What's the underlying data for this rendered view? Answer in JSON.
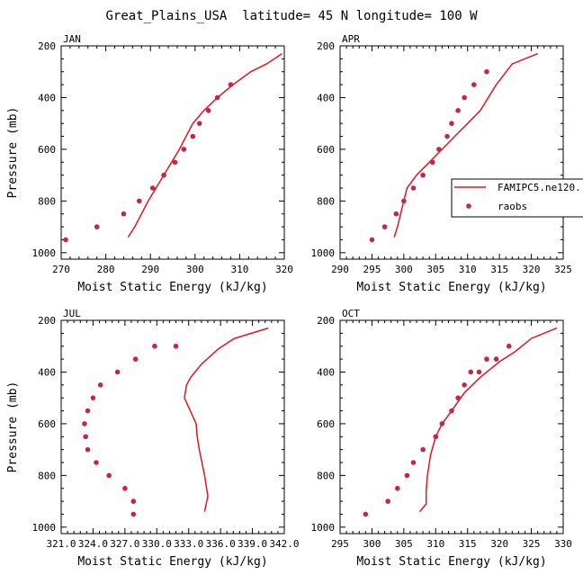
{
  "figure_title": "Great_Plains_USA  latitude= 45 N longitude= 100 W",
  "legend": {
    "model_label": "FAMIPC5.ne120.",
    "obs_label": "raobs",
    "model_color": "#e8131c",
    "obs_color": "#c2264a"
  },
  "chart_data": [
    {
      "type": "line",
      "panel": "JAN",
      "title": "JAN",
      "xlabel": "Moist Static Energy (kJ/kg)",
      "ylabel": "Pressure (mb)",
      "xlim": [
        270,
        320
      ],
      "ylim": [
        1025,
        200
      ],
      "x_ticks": [
        270,
        280,
        290,
        300,
        310,
        320
      ],
      "x_tick_labels": [
        "270",
        "280",
        "290",
        "300",
        "310",
        "320"
      ],
      "y_ticks": [
        200,
        400,
        600,
        800,
        1000
      ],
      "y_tick_labels": [
        "200",
        "400",
        "600",
        "800",
        "1000"
      ],
      "series": [
        {
          "name": "FAMIPC5.ne120.",
          "style": "line",
          "x": [
            285.0,
            286.5,
            289.5,
            293.0,
            296.5,
            299.5,
            302.0,
            305.0,
            308.5,
            312.5,
            316.0,
            319.5
          ],
          "y": [
            940,
            900,
            800,
            700,
            600,
            500,
            450,
            400,
            350,
            300,
            270,
            230
          ]
        },
        {
          "name": "raobs",
          "style": "points",
          "x": [
            271.0,
            278.0,
            284.0,
            287.5,
            290.5,
            293.0,
            295.5,
            297.5,
            299.5,
            301.0,
            303.0,
            305.0,
            308.0
          ],
          "y": [
            950,
            900,
            850,
            800,
            750,
            700,
            650,
            600,
            550,
            500,
            450,
            400,
            350
          ]
        }
      ]
    },
    {
      "type": "line",
      "panel": "APR",
      "title": "APR",
      "xlabel": "Moist Static Energy (kJ/kg)",
      "ylabel": "Pressure (mb)",
      "xlim": [
        290,
        325
      ],
      "ylim": [
        1025,
        200
      ],
      "x_ticks": [
        290,
        295,
        300,
        305,
        310,
        315,
        320,
        325
      ],
      "x_tick_labels": [
        "290",
        "295",
        "300",
        "305",
        "310",
        "315",
        "320",
        "325"
      ],
      "y_ticks": [
        200,
        400,
        600,
        800,
        1000
      ],
      "y_tick_labels": [
        "200",
        "400",
        "600",
        "800",
        "1000"
      ],
      "series": [
        {
          "name": "FAMIPC5.ne120.",
          "style": "line",
          "x": [
            298.5,
            299.0,
            299.5,
            300.5,
            302.0,
            304.0,
            306.0,
            308.0,
            310.0,
            312.0,
            314.5,
            317.0,
            321.0
          ],
          "y": [
            940,
            900,
            850,
            750,
            700,
            650,
            600,
            550,
            500,
            450,
            350,
            270,
            230
          ]
        },
        {
          "name": "raobs",
          "style": "points",
          "x": [
            295.0,
            297.0,
            298.8,
            300.0,
            301.5,
            303.0,
            304.5,
            305.5,
            306.8,
            307.5,
            308.5,
            309.5,
            311.0,
            313.0
          ],
          "y": [
            950,
            900,
            850,
            800,
            750,
            700,
            650,
            600,
            550,
            500,
            450,
            400,
            350,
            300
          ]
        }
      ]
    },
    {
      "type": "line",
      "panel": "JUL",
      "title": "JUL",
      "xlabel": "Moist Static Energy (kJ/kg)",
      "ylabel": "Pressure (mb)",
      "xlim": [
        321.0,
        342.0
      ],
      "ylim": [
        1025,
        200
      ],
      "x_ticks": [
        321.0,
        324.0,
        327.0,
        330.0,
        333.0,
        336.0,
        339.0,
        342.0
      ],
      "x_tick_labels": [
        "321.0",
        "324.0",
        "327.0",
        "330.0",
        "333.0",
        "336.0",
        "339.0",
        "342.0"
      ],
      "y_ticks": [
        200,
        400,
        600,
        800,
        1000
      ],
      "y_tick_labels": [
        "200",
        "400",
        "600",
        "800",
        "1000"
      ],
      "series": [
        {
          "name": "FAMIPC5.ne120.",
          "style": "line",
          "x": [
            334.5,
            334.8,
            334.5,
            334.0,
            333.8,
            333.7,
            332.6,
            332.8,
            333.2,
            334.2,
            335.8,
            337.3,
            340.5
          ],
          "y": [
            940,
            880,
            800,
            700,
            650,
            600,
            500,
            450,
            420,
            370,
            310,
            270,
            230
          ]
        },
        {
          "name": "raobs",
          "style": "points",
          "x": [
            327.8,
            327.8,
            327.0,
            325.5,
            324.3,
            323.5,
            323.3,
            323.2,
            323.5,
            324.0,
            324.7,
            326.3,
            328.0,
            329.8,
            331.8
          ],
          "y": [
            950,
            900,
            850,
            800,
            750,
            700,
            650,
            600,
            550,
            500,
            450,
            400,
            350,
            300,
            300
          ]
        }
      ]
    },
    {
      "type": "line",
      "panel": "OCT",
      "title": "OCT",
      "xlabel": "Moist Static Energy (kJ/kg)",
      "ylabel": "Pressure (mb)",
      "xlim": [
        295,
        330
      ],
      "ylim": [
        1025,
        200
      ],
      "x_ticks": [
        295,
        300,
        305,
        310,
        315,
        320,
        325,
        330
      ],
      "x_tick_labels": [
        "295",
        "300",
        "305",
        "310",
        "315",
        "320",
        "325",
        "330"
      ],
      "y_ticks": [
        200,
        400,
        600,
        800,
        1000
      ],
      "y_tick_labels": [
        "200",
        "400",
        "600",
        "800",
        "1000"
      ],
      "series": [
        {
          "name": "FAMIPC5.ne120.",
          "style": "line",
          "x": [
            307.5,
            308.5,
            308.5,
            308.7,
            309.2,
            310.0,
            311.0,
            312.5,
            314.5,
            317.0,
            320.0,
            322.5,
            325.0,
            329.0
          ],
          "y": [
            940,
            910,
            860,
            800,
            720,
            650,
            600,
            550,
            480,
            420,
            360,
            320,
            270,
            230
          ]
        },
        {
          "name": "raobs",
          "style": "points",
          "x": [
            299.0,
            302.5,
            304.0,
            305.5,
            306.5,
            308.0,
            310.0,
            311.0,
            312.5,
            313.5,
            314.5,
            315.5,
            316.8,
            318.0,
            319.5,
            321.5
          ],
          "y": [
            950,
            900,
            850,
            800,
            750,
            700,
            650,
            600,
            550,
            500,
            450,
            400,
            400,
            350,
            350,
            300
          ]
        }
      ]
    }
  ]
}
